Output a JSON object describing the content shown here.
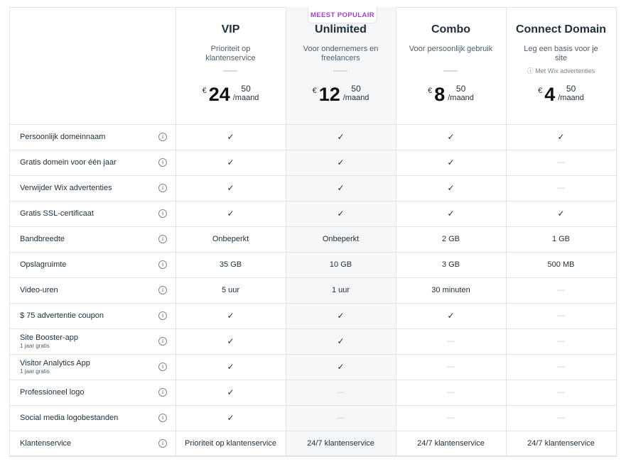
{
  "badge": "MEEST POPULAIR",
  "plans": [
    {
      "name": "VIP",
      "desc": "Prioriteit op klantenservice",
      "currency": "€",
      "amount": "24",
      "cents": "50",
      "period": "/maand"
    },
    {
      "name": "Unlimited",
      "desc": "Voor ondernemers en freelancers",
      "currency": "€",
      "amount": "12",
      "cents": "50",
      "period": "/maand"
    },
    {
      "name": "Combo",
      "desc": "Voor persoonlijk gebruik",
      "currency": "€",
      "amount": "8",
      "cents": "50",
      "period": "/maand"
    },
    {
      "name": "Connect Domain",
      "desc": "Leg een basis voor je site",
      "note": "ⓘ Met Wix advertenties",
      "currency": "€",
      "amount": "4",
      "cents": "50",
      "period": "/maand"
    }
  ],
  "features": [
    {
      "label": "Persoonlijk domeinnaam",
      "values": [
        "✓",
        "✓",
        "✓",
        "✓"
      ]
    },
    {
      "label": "Gratis domein voor één jaar",
      "values": [
        "✓",
        "✓",
        "✓",
        "—"
      ]
    },
    {
      "label": "Verwijder Wix advertenties",
      "values": [
        "✓",
        "✓",
        "✓",
        "—"
      ]
    },
    {
      "label": "Gratis SSL-certificaat",
      "values": [
        "✓",
        "✓",
        "✓",
        "✓"
      ]
    },
    {
      "label": "Bandbreedte",
      "values": [
        "Onbeperkt",
        "Onbeperkt",
        "2 GB",
        "1 GB"
      ]
    },
    {
      "label": "Opslagruimte",
      "values": [
        "35 GB",
        "10 GB",
        "3 GB",
        "500 MB"
      ]
    },
    {
      "label": "Video-uren",
      "values": [
        "5 uur",
        "1 uur",
        "30 minuten",
        "—"
      ]
    },
    {
      "label": "$ 75 advertentie coupon",
      "values": [
        "✓",
        "✓",
        "✓",
        "—"
      ]
    },
    {
      "label": "Site Booster-app",
      "sub": "1 jaar gratis",
      "values": [
        "✓",
        "✓",
        "—",
        "—"
      ]
    },
    {
      "label": "Visitor Analytics App",
      "sub": "1 jaar gratis",
      "values": [
        "✓",
        "✓",
        "—",
        "—"
      ]
    },
    {
      "label": "Professioneel logo",
      "values": [
        "✓",
        "—",
        "—",
        "—"
      ]
    },
    {
      "label": "Social media logobestanden",
      "values": [
        "✓",
        "—",
        "—",
        "—"
      ]
    },
    {
      "label": "Klantenservice",
      "values": [
        "Prioriteit op klantenservice",
        "24/7 klantenservice",
        "24/7 klantenservice",
        "24/7 klantenservice"
      ]
    }
  ],
  "info_glyph": "i",
  "colors": {
    "accent": "#9d43c8",
    "highlight": "#f5f6f8",
    "border": "#e3e3e3"
  }
}
